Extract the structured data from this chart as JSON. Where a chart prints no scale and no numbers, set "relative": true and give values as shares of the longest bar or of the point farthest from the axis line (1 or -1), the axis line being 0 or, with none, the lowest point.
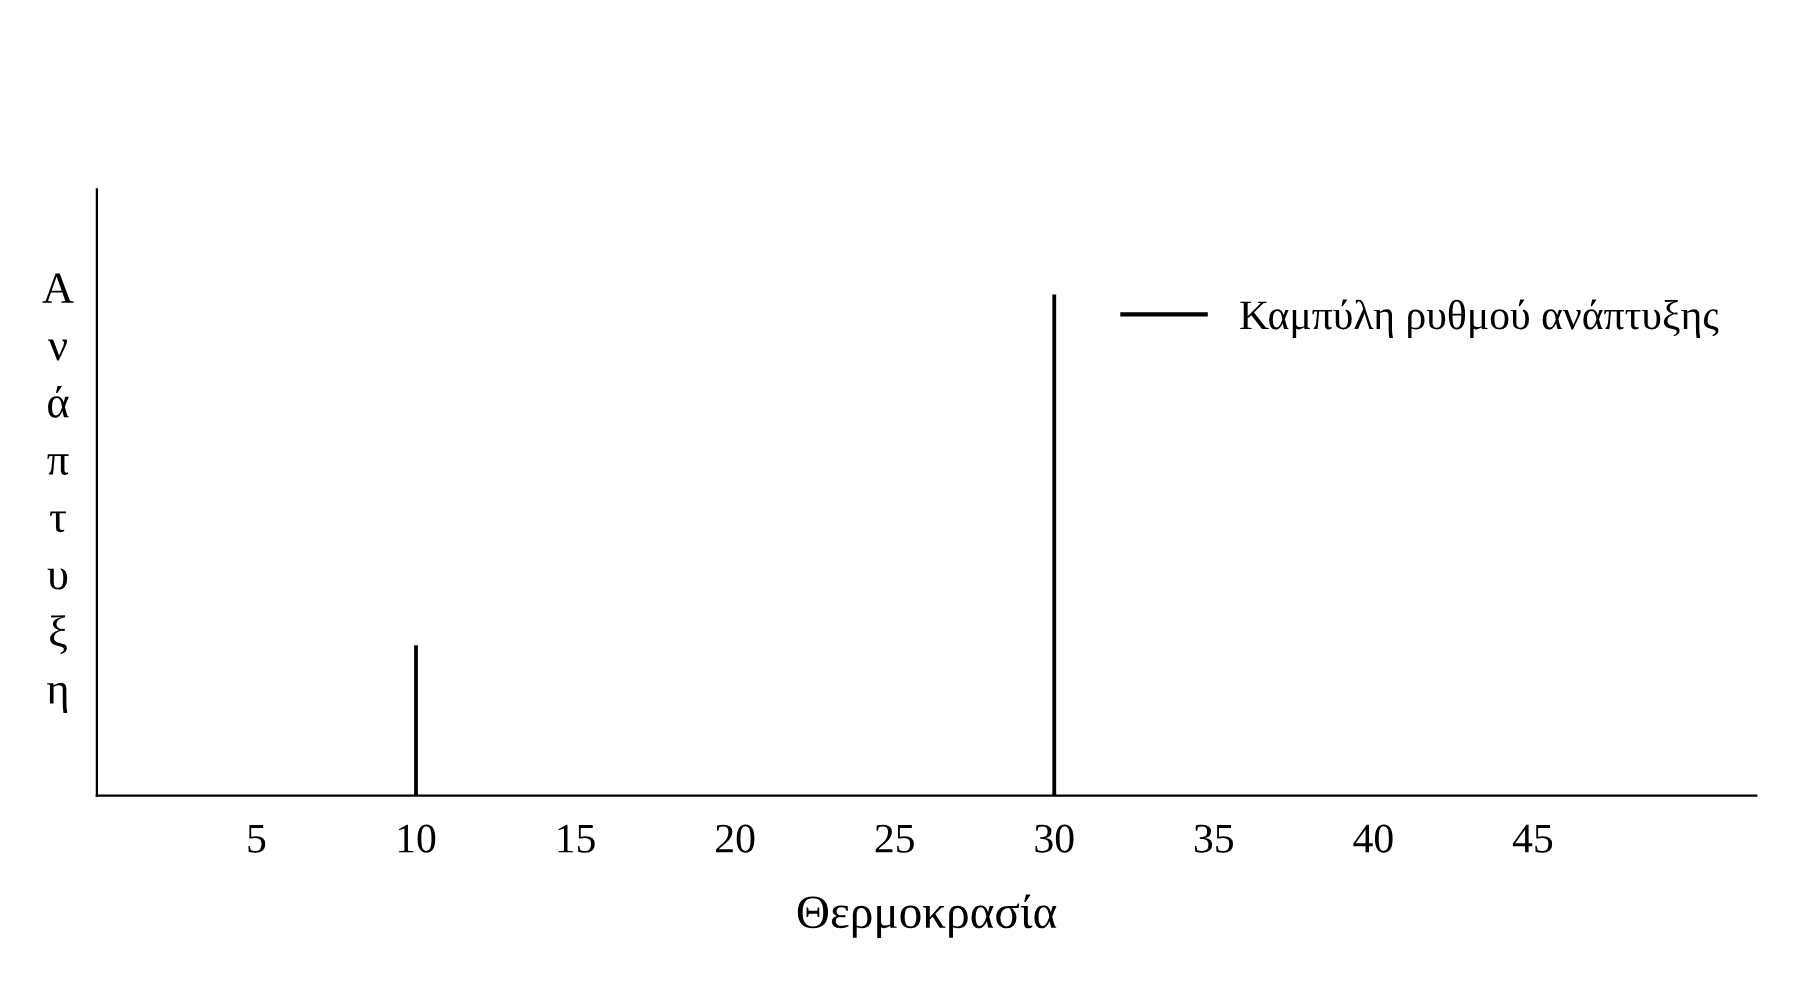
{
  "chart_data": {
    "type": "bar",
    "xlabel": "Θερμοκρασία",
    "ylabel": "Ανάπτυξη",
    "relative": true,
    "x": [
      10,
      30
    ],
    "series": [
      {
        "name": "Καμπύλη ρυθμού ανάπτυξης",
        "color": "#000000",
        "values": [
          0.3,
          1
        ]
      }
    ],
    "xlim": [
      0,
      52
    ],
    "xticks": [
      5,
      10,
      15,
      20,
      25,
      30,
      35,
      40,
      45
    ],
    "legend": "top right",
    "grid": false
  }
}
